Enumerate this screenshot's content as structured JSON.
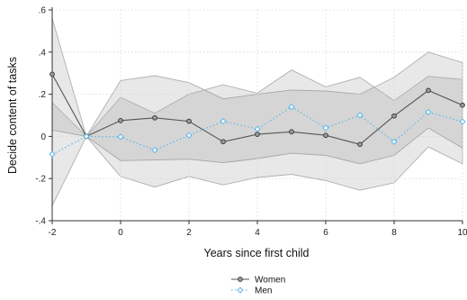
{
  "chart_data": {
    "type": "line",
    "xlabel": "Years since first child",
    "ylabel": "Decide content of tasks",
    "xlim": [
      -2,
      10
    ],
    "ylim": [
      -0.4,
      0.6
    ],
    "x_ticks": [
      -2,
      0,
      2,
      4,
      6,
      8,
      10
    ],
    "x_tick_labels": [
      "-2",
      "0",
      "2",
      "4",
      "6",
      "8",
      "10"
    ],
    "y_ticks": [
      -0.4,
      -0.2,
      0,
      0.2,
      0.4,
      0.6
    ],
    "y_tick_labels": [
      "-.4",
      "-.2",
      "0",
      ".2",
      ".4",
      ".6"
    ],
    "grid": true,
    "legend_position": "bottom-center",
    "x": [
      -2,
      -1,
      0,
      1,
      2,
      3,
      4,
      5,
      6,
      7,
      8,
      9,
      10
    ],
    "series": [
      {
        "name": "Women",
        "color": "#555555",
        "marker": "circle",
        "line": "solid",
        "values": [
          0.295,
          0.0,
          0.075,
          0.088,
          0.072,
          -0.025,
          0.01,
          0.022,
          0.005,
          -0.038,
          0.097,
          0.218,
          0.148
        ],
        "ci_lower": [
          0.03,
          0.0,
          -0.115,
          -0.112,
          -0.108,
          -0.125,
          -0.105,
          -0.08,
          -0.09,
          -0.13,
          -0.09,
          0.04,
          -0.055
        ],
        "ci_upper": [
          0.56,
          0.0,
          0.265,
          0.288,
          0.255,
          0.178,
          0.2,
          0.22,
          0.215,
          0.2,
          0.28,
          0.4,
          0.35
        ]
      },
      {
        "name": "Men",
        "color": "#5bb6e8",
        "marker": "diamond",
        "line": "dotted",
        "values": [
          -0.085,
          0.0,
          -0.002,
          -0.065,
          0.005,
          0.072,
          0.035,
          0.14,
          0.04,
          0.1,
          -0.025,
          0.115,
          0.07
        ],
        "ci_lower": [
          -0.33,
          0.0,
          -0.19,
          -0.24,
          -0.19,
          -0.23,
          -0.195,
          -0.18,
          -0.21,
          -0.255,
          -0.22,
          -0.05,
          -0.13
        ],
        "ci_upper": [
          0.16,
          0.0,
          0.185,
          0.11,
          0.2,
          0.245,
          0.205,
          0.315,
          0.235,
          0.28,
          0.17,
          0.285,
          0.27
        ]
      }
    ]
  }
}
